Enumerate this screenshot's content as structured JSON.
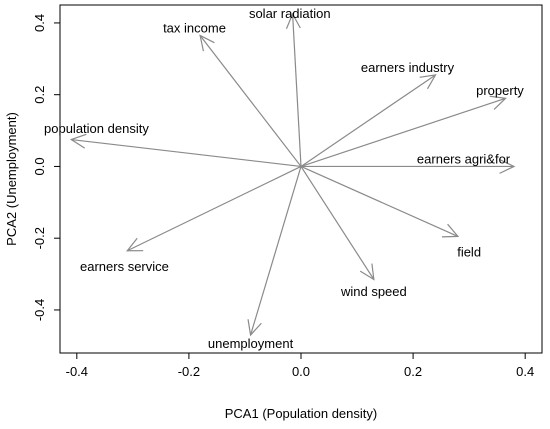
{
  "chart_data": {
    "type": "biplot",
    "xlabel": "PCA1 (Population density)",
    "ylabel": "PCA2 (Unemployment)",
    "xlim": [
      -0.43,
      0.43
    ],
    "ylim": [
      -0.52,
      0.45
    ],
    "xticks": [
      -0.4,
      -0.2,
      0.0,
      0.2,
      0.4
    ],
    "xtick_labels": [
      "-0.4",
      "-0.2",
      "0.0",
      "0.2",
      "0.4"
    ],
    "yticks": [
      -0.4,
      -0.2,
      0.0,
      0.2,
      0.4
    ],
    "ytick_labels": [
      "-0.4",
      "-0.2",
      "0.0",
      "0.2",
      "0.4"
    ],
    "origin": [
      0.0,
      0.0
    ],
    "arrow_color": "#8a8a8a",
    "vectors": [
      {
        "name": "solar radiation",
        "x": -0.015,
        "y": 0.425,
        "lx": -0.02,
        "ly": 0.425
      },
      {
        "name": "tax income",
        "x": -0.18,
        "y": 0.365,
        "lx": -0.19,
        "ly": 0.385
      },
      {
        "name": "earners industry",
        "x": 0.24,
        "y": 0.255,
        "lx": 0.19,
        "ly": 0.275
      },
      {
        "name": "property",
        "x": 0.365,
        "y": 0.19,
        "lx": 0.355,
        "ly": 0.21
      },
      {
        "name": "population density",
        "x": -0.41,
        "y": 0.075,
        "lx": -0.365,
        "ly": 0.105
      },
      {
        "name": "earners agri&for",
        "x": 0.38,
        "y": 0.0,
        "lx": 0.29,
        "ly": 0.02
      },
      {
        "name": "field",
        "x": 0.28,
        "y": -0.195,
        "lx": 0.3,
        "ly": -0.24
      },
      {
        "name": "earners service",
        "x": -0.31,
        "y": -0.235,
        "lx": -0.315,
        "ly": -0.28
      },
      {
        "name": "wind speed",
        "x": 0.13,
        "y": -0.315,
        "lx": 0.13,
        "ly": -0.35
      },
      {
        "name": "unemployment",
        "x": -0.09,
        "y": -0.47,
        "lx": -0.09,
        "ly": -0.495
      }
    ]
  }
}
